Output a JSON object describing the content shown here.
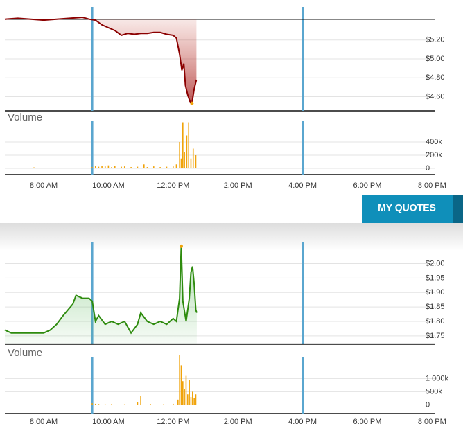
{
  "ui": {
    "button": "MY QUOTES"
  },
  "chart_data": [
    {
      "type": "line",
      "color": "#8b0000",
      "fill_color": "#c0392b",
      "extreme_marker": "min",
      "reference": 5.42,
      "x": [
        6.8,
        7.2,
        7.6,
        8.0,
        8.4,
        8.8,
        9.2,
        9.4,
        9.6,
        9.8,
        10.0,
        10.2,
        10.4,
        10.6,
        10.8,
        11.0,
        11.2,
        11.4,
        11.6,
        11.8,
        12.0,
        12.1,
        12.2,
        12.27,
        12.33,
        12.38,
        12.45,
        12.52,
        12.58,
        12.65,
        12.72
      ],
      "values": [
        5.42,
        5.43,
        5.42,
        5.41,
        5.42,
        5.43,
        5.44,
        5.42,
        5.41,
        5.36,
        5.33,
        5.3,
        5.25,
        5.27,
        5.26,
        5.27,
        5.27,
        5.28,
        5.28,
        5.26,
        5.25,
        5.22,
        5.05,
        4.88,
        4.95,
        4.72,
        4.62,
        4.55,
        4.53,
        4.68,
        4.78
      ],
      "xlim": [
        6.8,
        20.1
      ],
      "ylim": [
        4.45,
        5.55
      ],
      "session_lines": [
        9.5,
        16
      ],
      "yticks": [
        {
          "value": 4.6,
          "label": "$4.60"
        },
        {
          "value": 4.8,
          "label": "$4.80"
        },
        {
          "value": 5.0,
          "label": "$5.00"
        },
        {
          "value": 5.2,
          "label": "$5.20"
        }
      ]
    },
    {
      "type": "bar",
      "title": "Volume",
      "color": "#f0a30a",
      "x": [
        7.7,
        9.5,
        9.6,
        9.7,
        9.8,
        9.9,
        10.0,
        10.1,
        10.2,
        10.4,
        10.5,
        10.7,
        10.9,
        11.1,
        11.2,
        11.4,
        11.6,
        11.8,
        12.0,
        12.1,
        12.2,
        12.25,
        12.3,
        12.35,
        12.42,
        12.48,
        12.55,
        12.62,
        12.7
      ],
      "values": [
        15000,
        20000,
        35000,
        25000,
        40000,
        30000,
        45000,
        20000,
        35000,
        25000,
        30000,
        20000,
        25000,
        60000,
        20000,
        30000,
        20000,
        25000,
        30000,
        60000,
        400000,
        150000,
        700000,
        250000,
        500000,
        700000,
        150000,
        300000,
        200000
      ],
      "xlim": [
        6.8,
        20.1
      ],
      "ylim": [
        -95000,
        874000
      ],
      "session_lines": [
        9.5,
        16
      ],
      "yticks": [
        0,
        {
          "value": 200000,
          "label": "200k"
        },
        {
          "value": 400000,
          "label": "400k"
        }
      ],
      "xticks": [
        {
          "value": 8,
          "label": "8:00 AM"
        },
        {
          "value": 10,
          "label": "10:00 AM"
        },
        {
          "value": 12,
          "label": "12:00 PM"
        },
        {
          "value": 14,
          "label": "2:00 PM"
        },
        {
          "value": 16,
          "label": "4:00 PM"
        },
        {
          "value": 18,
          "label": "6:00 PM"
        },
        {
          "value": 20,
          "label": "8:00 PM"
        }
      ]
    },
    {
      "type": "line",
      "color": "#2e8b0e",
      "fill_color": "#5cb85c",
      "extreme_marker": "max",
      "reference": 1.722,
      "x": [
        6.8,
        7.0,
        7.5,
        8.0,
        8.2,
        8.4,
        8.6,
        8.9,
        9.0,
        9.2,
        9.4,
        9.5,
        9.6,
        9.7,
        9.9,
        10.1,
        10.3,
        10.5,
        10.7,
        10.9,
        11.0,
        11.2,
        11.4,
        11.6,
        11.8,
        12.0,
        12.1,
        12.2,
        12.25,
        12.3,
        12.4,
        12.5,
        12.55,
        12.6,
        12.65,
        12.7,
        12.73
      ],
      "values": [
        1.77,
        1.76,
        1.76,
        1.76,
        1.77,
        1.79,
        1.82,
        1.86,
        1.89,
        1.88,
        1.88,
        1.87,
        1.8,
        1.82,
        1.79,
        1.8,
        1.79,
        1.8,
        1.76,
        1.79,
        1.83,
        1.8,
        1.79,
        1.8,
        1.79,
        1.81,
        1.8,
        1.88,
        2.06,
        1.87,
        1.8,
        1.88,
        1.97,
        1.99,
        1.93,
        1.84,
        1.83
      ],
      "xlim": [
        6.8,
        20.1
      ],
      "ylim": [
        1.721,
        2.073
      ],
      "session_lines": [
        9.5,
        16
      ],
      "yticks": [
        {
          "value": 1.75,
          "label": "$1.75"
        },
        {
          "value": 1.8,
          "label": "$1.80"
        },
        {
          "value": 1.85,
          "label": "$1.85"
        },
        {
          "value": 1.9,
          "label": "$1.90"
        },
        {
          "value": 1.95,
          "label": "$1.95"
        },
        {
          "value": 2.0,
          "label": "$2.00"
        }
      ]
    },
    {
      "type": "bar",
      "title": "Volume",
      "color": "#f0a30a",
      "x": [
        9.5,
        9.6,
        9.7,
        9.9,
        10.1,
        10.5,
        10.9,
        11.0,
        11.3,
        11.7,
        12.0,
        12.15,
        12.2,
        12.25,
        12.3,
        12.35,
        12.4,
        12.45,
        12.5,
        12.55,
        12.6,
        12.65,
        12.7
      ],
      "values": [
        60000,
        40000,
        30000,
        20000,
        30000,
        20000,
        100000,
        350000,
        30000,
        20000,
        40000,
        200000,
        1890000,
        1500000,
        900000,
        600000,
        1100000,
        400000,
        950000,
        300000,
        500000,
        250000,
        400000
      ],
      "xlim": [
        6.8,
        20.1
      ],
      "ylim": [
        -330000,
        2220000
      ],
      "session_lines": [
        9.5,
        16
      ],
      "yticks": [
        0,
        {
          "value": 500000,
          "label": "500k"
        },
        {
          "value": 1000000,
          "label": "1 000k"
        }
      ],
      "xticks": [
        {
          "value": 8,
          "label": "8:00 AM"
        },
        {
          "value": 10,
          "label": "10:00 AM"
        },
        {
          "value": 12,
          "label": "12:00 PM"
        },
        {
          "value": 14,
          "label": "2:00 PM"
        },
        {
          "value": 16,
          "label": "4:00 PM"
        },
        {
          "value": 18,
          "label": "6:00 PM"
        },
        {
          "value": 20,
          "label": "8:00 PM"
        }
      ]
    }
  ]
}
